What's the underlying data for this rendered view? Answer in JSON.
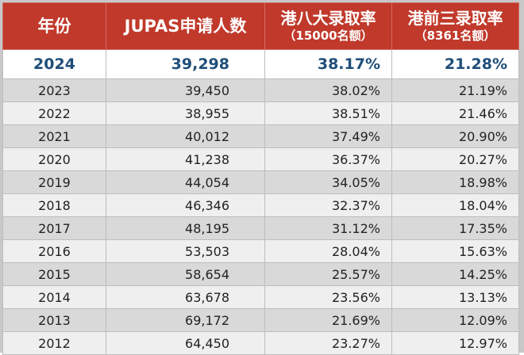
{
  "header": {
    "year": "年份",
    "applicants": "JUPAS申请人数",
    "hk8_title": "港八大录取率",
    "hk8_sub": "（15000名额）",
    "top3_title": "港前三录取率",
    "top3_sub": "（8361名额）"
  },
  "highlight": {
    "year": "2024",
    "applicants": "39,298",
    "hk8": "38.17%",
    "top3": "21.28%"
  },
  "rows": [
    {
      "year": "2023",
      "applicants": "39,450",
      "hk8": "38.02%",
      "top3": "21.19%"
    },
    {
      "year": "2022",
      "applicants": "38,955",
      "hk8": "38.51%",
      "top3": "21.46%"
    },
    {
      "year": "2021",
      "applicants": "40,012",
      "hk8": "37.49%",
      "top3": "20.90%"
    },
    {
      "year": "2020",
      "applicants": "41,238",
      "hk8": "36.37%",
      "top3": "20.27%"
    },
    {
      "year": "2019",
      "applicants": "44,054",
      "hk8": "34.05%",
      "top3": "18.98%"
    },
    {
      "year": "2018",
      "applicants": "46,346",
      "hk8": "32.37%",
      "top3": "18.04%"
    },
    {
      "year": "2017",
      "applicants": "48,195",
      "hk8": "31.12%",
      "top3": "17.35%"
    },
    {
      "year": "2016",
      "applicants": "53,503",
      "hk8": "28.04%",
      "top3": "15.63%"
    },
    {
      "year": "2015",
      "applicants": "58,654",
      "hk8": "25.57%",
      "top3": "14.25%"
    },
    {
      "year": "2014",
      "applicants": "63,678",
      "hk8": "23.56%",
      "top3": "13.13%"
    },
    {
      "year": "2013",
      "applicants": "69,172",
      "hk8": "21.69%",
      "top3": "12.09%"
    },
    {
      "year": "2012",
      "applicants": "64,450",
      "hk8": "23.27%",
      "top3": "12.97%"
    }
  ],
  "colors": {
    "header_bg": "#c0392b",
    "highlight_text": "#1f4e79",
    "row_even": "#d9d9d9",
    "row_odd": "#efefef"
  }
}
